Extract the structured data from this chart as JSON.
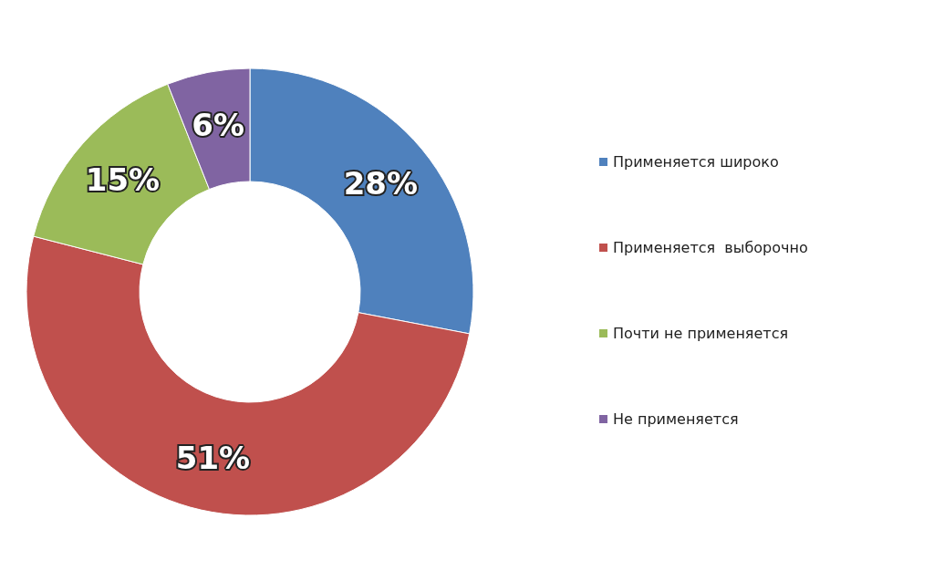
{
  "chart_data": {
    "type": "donut",
    "categories": [
      "Применяется широко",
      "Применяется  выборочно",
      "Почти не применяется",
      "Не применяется"
    ],
    "values": [
      28,
      51,
      15,
      6
    ],
    "value_labels": [
      "28%",
      "51%",
      "15%",
      "6%"
    ],
    "colors": [
      "#4f81bd",
      "#c0504d",
      "#9bbb59",
      "#8064a2"
    ],
    "legend": "right"
  }
}
